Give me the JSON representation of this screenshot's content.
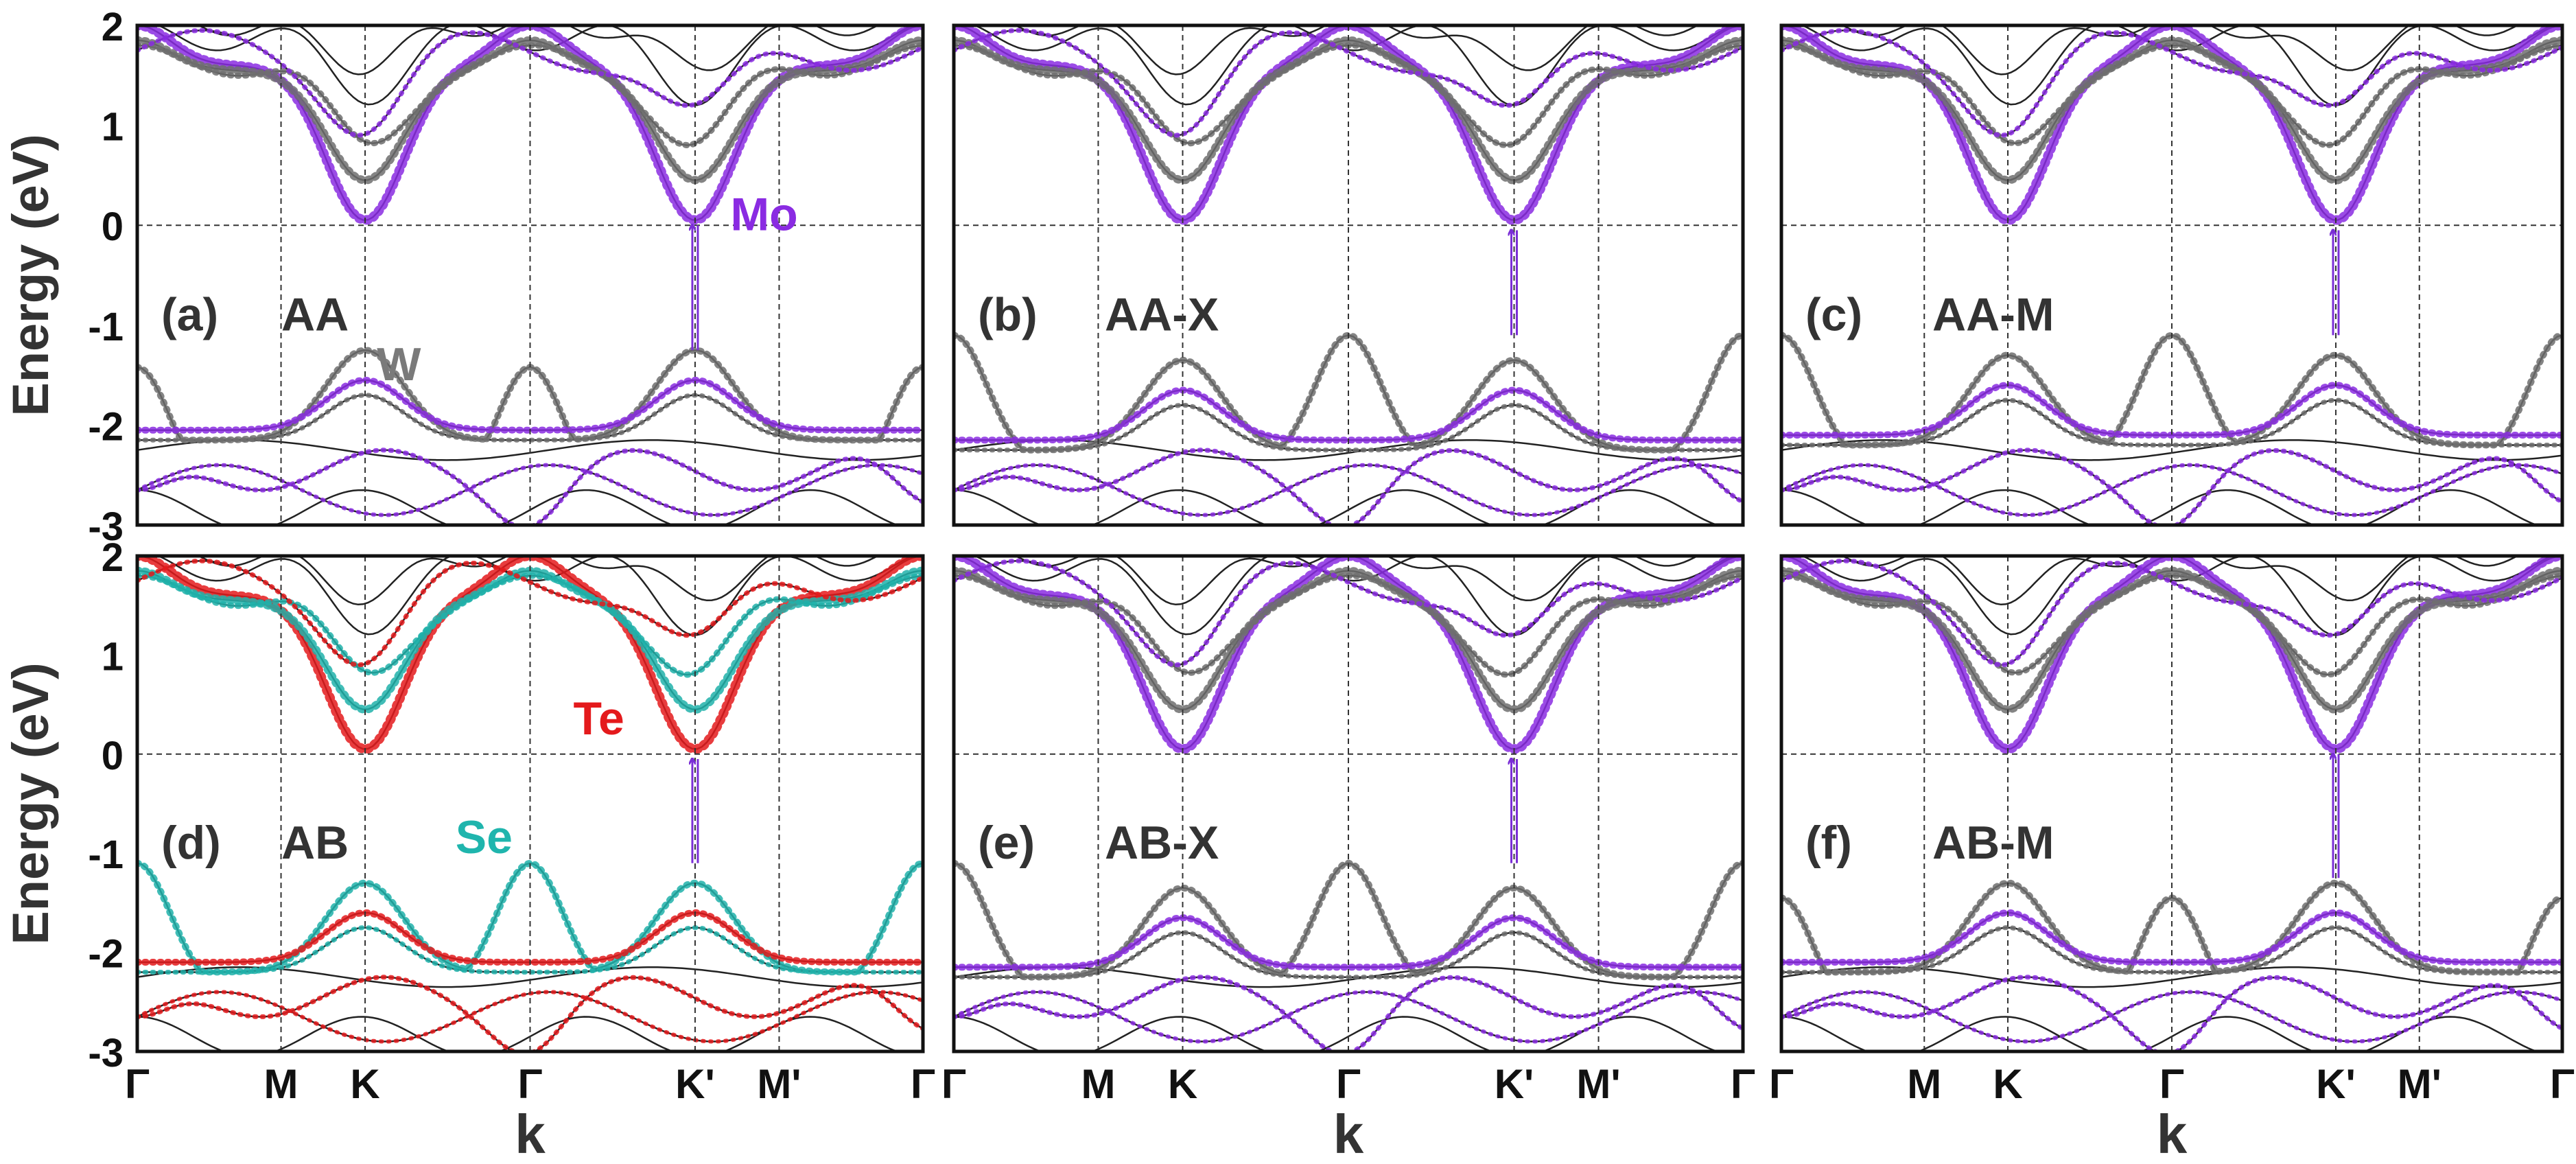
{
  "chart_data": {
    "type": "line",
    "title": "",
    "ylabel": "Energy (eV)",
    "xlabel": "k",
    "ylim": [
      -3,
      2
    ],
    "yticks": [
      "2",
      "1",
      "0",
      "-1",
      "-2",
      "-3"
    ],
    "kpath": [
      "Γ",
      "M",
      "K",
      "Γ",
      "K'",
      "M'",
      "Γ"
    ],
    "fermi_level": 0,
    "colors": {
      "Mo": "#8a2be2",
      "W": "#6e6e6e",
      "Te": "#e41a1c",
      "Se": "#20b2aa",
      "axis": "#111111",
      "transition": "#7b2fd6"
    },
    "panels": [
      {
        "label": "(a)",
        "name": "AA",
        "atoms": [
          {
            "symbol": "Mo",
            "color": "#8a2be2"
          },
          {
            "symbol": "W",
            "color": "#7a7a7a"
          }
        ],
        "transition": {
          "from_k": "K'",
          "from_e": -1.25,
          "to_k": "K'",
          "to_e": 0.0,
          "type": "direct"
        },
        "conduction_minima": [
          {
            "k": "K",
            "energy": 0.0
          },
          {
            "k": "K'",
            "energy": 0.0
          }
        ],
        "valence_maxima": [
          {
            "k": "K",
            "energy": -1.25
          },
          {
            "k": "Γ",
            "energy": -1.42
          },
          {
            "k": "K'",
            "energy": -1.25
          }
        ]
      },
      {
        "label": "(b)",
        "name": "AA-X",
        "atoms": [],
        "transition": {
          "from_k": "Γ",
          "from_e": -1.1,
          "to_k": "K'",
          "to_e": -0.05,
          "type": "indirect"
        },
        "conduction_minima": [
          {
            "k": "K",
            "energy": 0.05
          },
          {
            "k": "K'",
            "energy": 0.0
          }
        ],
        "valence_maxima": [
          {
            "k": "K",
            "energy": -1.35
          },
          {
            "k": "Γ",
            "energy": -1.1
          },
          {
            "k": "K'",
            "energy": -1.35
          }
        ]
      },
      {
        "label": "(c)",
        "name": "AA-M",
        "atoms": [],
        "transition": {
          "from_k": "Γ",
          "from_e": -1.1,
          "to_k": "K'",
          "to_e": -0.05,
          "type": "indirect"
        },
        "conduction_minima": [
          {
            "k": "K",
            "energy": 0.05
          },
          {
            "k": "K'",
            "energy": 0.0
          }
        ],
        "valence_maxima": [
          {
            "k": "K",
            "energy": -1.3
          },
          {
            "k": "Γ",
            "energy": -1.1
          },
          {
            "k": "K'",
            "energy": -1.3
          }
        ]
      },
      {
        "label": "(d)",
        "name": "AB",
        "atoms": [
          {
            "symbol": "Te",
            "color": "#e41a1c"
          },
          {
            "symbol": "Se",
            "color": "#1fb5ad"
          }
        ],
        "transition": {
          "from_k": "Γ",
          "from_e": -1.1,
          "to_k": "K'",
          "to_e": -0.05,
          "type": "indirect"
        },
        "conduction_minima": [
          {
            "k": "K",
            "energy": 0.05
          },
          {
            "k": "K'",
            "energy": 0.05
          }
        ],
        "valence_maxima": [
          {
            "k": "K",
            "energy": -1.3
          },
          {
            "k": "Γ",
            "energy": -1.1
          },
          {
            "k": "K'",
            "energy": -1.3
          }
        ]
      },
      {
        "label": "(e)",
        "name": "AB-X",
        "atoms": [],
        "transition": {
          "from_k": "Γ",
          "from_e": -1.1,
          "to_k": "K'",
          "to_e": -0.05,
          "type": "indirect"
        },
        "conduction_minima": [
          {
            "k": "K",
            "energy": 0.05
          },
          {
            "k": "K'",
            "energy": 0.0
          }
        ],
        "valence_maxima": [
          {
            "k": "K",
            "energy": -1.35
          },
          {
            "k": "Γ",
            "energy": -1.1
          },
          {
            "k": "K'",
            "energy": -1.35
          }
        ]
      },
      {
        "label": "(f)",
        "name": "AB-M",
        "atoms": [],
        "transition": {
          "from_k": "K'",
          "from_e": -1.25,
          "to_k": "K'",
          "to_e": 0.0,
          "type": "direct"
        },
        "conduction_minima": [
          {
            "k": "K",
            "energy": 0.05
          },
          {
            "k": "K'",
            "energy": 0.0
          }
        ],
        "valence_maxima": [
          {
            "k": "K",
            "energy": -1.3
          },
          {
            "k": "Γ",
            "energy": -1.45
          },
          {
            "k": "K'",
            "energy": -1.25
          }
        ]
      }
    ]
  }
}
